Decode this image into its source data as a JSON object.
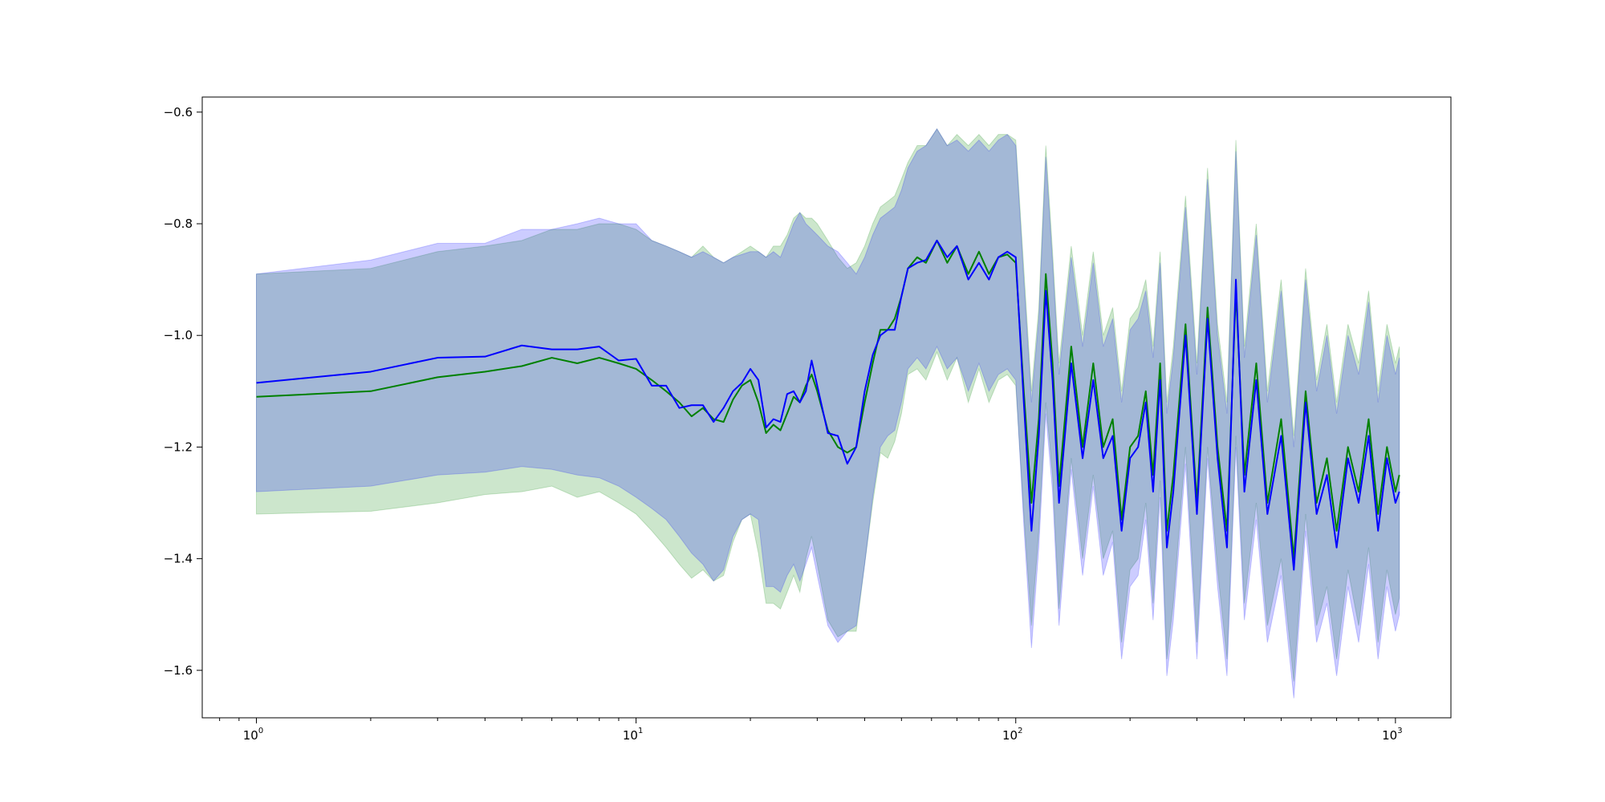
{
  "chart_data": {
    "type": "line",
    "title": "",
    "xlabel": "",
    "ylabel": "",
    "x_scale": "log",
    "xlim": [
      0.72,
      1400
    ],
    "ylim": [
      -1.685,
      -0.573
    ],
    "grid": false,
    "legend": "none",
    "x_ticks": [
      {
        "value": 1,
        "base": "10",
        "exp": "0"
      },
      {
        "value": 10,
        "base": "10",
        "exp": "1"
      },
      {
        "value": 100,
        "base": "10",
        "exp": "2"
      },
      {
        "value": 1000,
        "base": "10",
        "exp": "3"
      }
    ],
    "y_ticks": [
      {
        "value": -0.6,
        "label": "−0.6"
      },
      {
        "value": -0.8,
        "label": "−0.8"
      },
      {
        "value": -1.0,
        "label": "−1.0"
      },
      {
        "value": -1.2,
        "label": "−1.2"
      },
      {
        "value": -1.4,
        "label": "−1.4"
      },
      {
        "value": -1.6,
        "label": "−1.6"
      }
    ],
    "series": [
      {
        "color": "#008000",
        "band_color": "#008000",
        "band_opacity": 0.2,
        "x": [
          1,
          2,
          3,
          4,
          5,
          6,
          7,
          8,
          9,
          10,
          11,
          12,
          13,
          14,
          15,
          16,
          17,
          18,
          19,
          20,
          21,
          22,
          23,
          24,
          25,
          26,
          27,
          28,
          29,
          30,
          32,
          34,
          36,
          38,
          40,
          42,
          44,
          46,
          48,
          50,
          52,
          55,
          58,
          62,
          66,
          70,
          75,
          80,
          85,
          90,
          95,
          100,
          105,
          110,
          115,
          120,
          125,
          130,
          140,
          150,
          160,
          170,
          180,
          190,
          200,
          210,
          220,
          230,
          240,
          250,
          260,
          280,
          300,
          320,
          340,
          360,
          380,
          400,
          430,
          460,
          500,
          540,
          580,
          620,
          660,
          700,
          750,
          800,
          850,
          900,
          950,
          1000,
          1024
        ],
        "y": [
          -1.11,
          -1.1,
          -1.075,
          -1.065,
          -1.055,
          -1.04,
          -1.05,
          -1.04,
          -1.05,
          -1.06,
          -1.08,
          -1.1,
          -1.12,
          -1.145,
          -1.13,
          -1.15,
          -1.155,
          -1.115,
          -1.09,
          -1.08,
          -1.12,
          -1.175,
          -1.16,
          -1.17,
          -1.14,
          -1.11,
          -1.12,
          -1.09,
          -1.07,
          -1.1,
          -1.17,
          -1.2,
          -1.21,
          -1.2,
          -1.12,
          -1.05,
          -0.99,
          -0.99,
          -0.97,
          -0.93,
          -0.88,
          -0.86,
          -0.87,
          -0.83,
          -0.87,
          -0.84,
          -0.89,
          -0.85,
          -0.89,
          -0.86,
          -0.855,
          -0.87,
          -1.1,
          -1.3,
          -1.15,
          -0.89,
          -1.05,
          -1.27,
          -1.02,
          -1.2,
          -1.05,
          -1.2,
          -1.15,
          -1.33,
          -1.2,
          -1.18,
          -1.1,
          -1.25,
          -1.05,
          -1.35,
          -1.25,
          -0.98,
          -1.3,
          -0.95,
          -1.2,
          -1.35,
          -0.92,
          -1.25,
          -1.05,
          -1.3,
          -1.15,
          -1.4,
          -1.1,
          -1.3,
          -1.22,
          -1.35,
          -1.2,
          -1.28,
          -1.15,
          -1.32,
          -1.2,
          -1.28,
          -1.25
        ],
        "upper": [
          -0.89,
          -0.88,
          -0.85,
          -0.84,
          -0.83,
          -0.81,
          -0.81,
          -0.8,
          -0.8,
          -0.81,
          -0.83,
          -0.84,
          -0.85,
          -0.86,
          -0.84,
          -0.86,
          -0.87,
          -0.86,
          -0.85,
          -0.84,
          -0.85,
          -0.86,
          -0.84,
          -0.84,
          -0.82,
          -0.79,
          -0.78,
          -0.79,
          -0.79,
          -0.8,
          -0.83,
          -0.86,
          -0.88,
          -0.87,
          -0.84,
          -0.8,
          -0.77,
          -0.76,
          -0.75,
          -0.72,
          -0.69,
          -0.66,
          -0.66,
          -0.63,
          -0.66,
          -0.64,
          -0.66,
          -0.64,
          -0.66,
          -0.64,
          -0.64,
          -0.65,
          -0.88,
          -1.1,
          -0.95,
          -0.66,
          -0.85,
          -1.05,
          -0.84,
          -1.0,
          -0.85,
          -1.0,
          -0.95,
          -1.1,
          -0.97,
          -0.95,
          -0.9,
          -1.02,
          -0.85,
          -1.12,
          -1.02,
          -0.75,
          -1.05,
          -0.7,
          -0.98,
          -1.12,
          -0.65,
          -1.02,
          -0.8,
          -1.1,
          -0.9,
          -1.18,
          -0.88,
          -1.08,
          -0.98,
          -1.12,
          -0.98,
          -1.05,
          -0.92,
          -1.1,
          -0.98,
          -1.05,
          -1.02
        ],
        "lower": [
          -1.32,
          -1.315,
          -1.3,
          -1.285,
          -1.28,
          -1.27,
          -1.29,
          -1.28,
          -1.3,
          -1.32,
          -1.35,
          -1.38,
          -1.41,
          -1.435,
          -1.42,
          -1.44,
          -1.43,
          -1.37,
          -1.33,
          -1.32,
          -1.39,
          -1.48,
          -1.48,
          -1.49,
          -1.46,
          -1.43,
          -1.46,
          -1.4,
          -1.36,
          -1.41,
          -1.51,
          -1.54,
          -1.53,
          -1.53,
          -1.41,
          -1.3,
          -1.21,
          -1.22,
          -1.19,
          -1.14,
          -1.07,
          -1.06,
          -1.08,
          -1.03,
          -1.08,
          -1.04,
          -1.12,
          -1.06,
          -1.12,
          -1.08,
          -1.07,
          -1.09,
          -1.32,
          -1.52,
          -1.35,
          -1.12,
          -1.25,
          -1.49,
          -1.22,
          -1.4,
          -1.25,
          -1.4,
          -1.35,
          -1.55,
          -1.42,
          -1.4,
          -1.3,
          -1.48,
          -1.26,
          -1.58,
          -1.48,
          -1.2,
          -1.55,
          -1.2,
          -1.42,
          -1.58,
          -1.18,
          -1.48,
          -1.3,
          -1.52,
          -1.4,
          -1.62,
          -1.32,
          -1.52,
          -1.45,
          -1.58,
          -1.42,
          -1.52,
          -1.38,
          -1.55,
          -1.42,
          -1.5,
          -1.47
        ]
      },
      {
        "color": "#0000ff",
        "band_color": "#0000ff",
        "band_opacity": 0.2,
        "x": [
          1,
          2,
          3,
          4,
          5,
          6,
          7,
          8,
          9,
          10,
          11,
          12,
          13,
          14,
          15,
          16,
          17,
          18,
          19,
          20,
          21,
          22,
          23,
          24,
          25,
          26,
          27,
          28,
          29,
          30,
          32,
          34,
          36,
          38,
          40,
          42,
          44,
          46,
          48,
          50,
          52,
          55,
          58,
          62,
          66,
          70,
          75,
          80,
          85,
          90,
          95,
          100,
          105,
          110,
          115,
          120,
          125,
          130,
          140,
          150,
          160,
          170,
          180,
          190,
          200,
          210,
          220,
          230,
          240,
          250,
          260,
          280,
          300,
          320,
          340,
          360,
          380,
          400,
          430,
          460,
          500,
          540,
          580,
          620,
          660,
          700,
          750,
          800,
          850,
          900,
          950,
          1000,
          1024
        ],
        "y": [
          -1.085,
          -1.065,
          -1.04,
          -1.038,
          -1.018,
          -1.025,
          -1.025,
          -1.02,
          -1.045,
          -1.042,
          -1.09,
          -1.09,
          -1.13,
          -1.125,
          -1.125,
          -1.155,
          -1.13,
          -1.1,
          -1.085,
          -1.06,
          -1.08,
          -1.165,
          -1.15,
          -1.155,
          -1.105,
          -1.1,
          -1.12,
          -1.1,
          -1.045,
          -1.09,
          -1.175,
          -1.18,
          -1.23,
          -1.2,
          -1.1,
          -1.035,
          -1.0,
          -0.99,
          -0.99,
          -0.93,
          -0.88,
          -0.87,
          -0.865,
          -0.83,
          -0.86,
          -0.84,
          -0.9,
          -0.87,
          -0.9,
          -0.86,
          -0.85,
          -0.86,
          -1.12,
          -1.35,
          -1.18,
          -0.92,
          -1.08,
          -1.3,
          -1.05,
          -1.22,
          -1.08,
          -1.22,
          -1.18,
          -1.35,
          -1.22,
          -1.2,
          -1.12,
          -1.28,
          -1.08,
          -1.38,
          -1.28,
          -1.0,
          -1.32,
          -0.97,
          -1.22,
          -1.38,
          -0.9,
          -1.28,
          -1.08,
          -1.32,
          -1.18,
          -1.42,
          -1.12,
          -1.32,
          -1.25,
          -1.38,
          -1.22,
          -1.3,
          -1.18,
          -1.35,
          -1.22,
          -1.3,
          -1.28
        ],
        "upper": [
          -0.89,
          -0.865,
          -0.835,
          -0.835,
          -0.81,
          -0.81,
          -0.8,
          -0.79,
          -0.8,
          -0.8,
          -0.83,
          -0.84,
          -0.85,
          -0.86,
          -0.85,
          -0.86,
          -0.87,
          -0.86,
          -0.855,
          -0.85,
          -0.85,
          -0.86,
          -0.85,
          -0.86,
          -0.83,
          -0.8,
          -0.78,
          -0.8,
          -0.81,
          -0.82,
          -0.84,
          -0.85,
          -0.87,
          -0.89,
          -0.86,
          -0.82,
          -0.79,
          -0.78,
          -0.77,
          -0.74,
          -0.7,
          -0.67,
          -0.66,
          -0.63,
          -0.66,
          -0.65,
          -0.67,
          -0.65,
          -0.67,
          -0.65,
          -0.64,
          -0.66,
          -0.9,
          -1.12,
          -0.97,
          -0.68,
          -0.87,
          -1.07,
          -0.86,
          -1.02,
          -0.87,
          -1.02,
          -0.97,
          -1.12,
          -0.99,
          -0.97,
          -0.92,
          -1.04,
          -0.87,
          -1.14,
          -1.04,
          -0.77,
          -1.07,
          -0.72,
          -1.0,
          -1.14,
          -0.67,
          -1.04,
          -0.82,
          -1.12,
          -0.92,
          -1.2,
          -0.9,
          -1.1,
          -1.0,
          -1.14,
          -1.0,
          -1.07,
          -0.94,
          -1.12,
          -1.0,
          -1.07,
          -1.04
        ],
        "lower": [
          -1.28,
          -1.27,
          -1.25,
          -1.245,
          -1.235,
          -1.24,
          -1.25,
          -1.255,
          -1.27,
          -1.29,
          -1.31,
          -1.33,
          -1.36,
          -1.39,
          -1.41,
          -1.44,
          -1.42,
          -1.36,
          -1.33,
          -1.32,
          -1.33,
          -1.45,
          -1.45,
          -1.46,
          -1.43,
          -1.41,
          -1.44,
          -1.41,
          -1.38,
          -1.43,
          -1.52,
          -1.55,
          -1.53,
          -1.52,
          -1.41,
          -1.29,
          -1.2,
          -1.18,
          -1.17,
          -1.12,
          -1.06,
          -1.04,
          -1.06,
          -1.02,
          -1.06,
          -1.04,
          -1.1,
          -1.05,
          -1.1,
          -1.07,
          -1.06,
          -1.08,
          -1.34,
          -1.56,
          -1.38,
          -1.14,
          -1.28,
          -1.52,
          -1.24,
          -1.43,
          -1.27,
          -1.43,
          -1.37,
          -1.58,
          -1.45,
          -1.43,
          -1.33,
          -1.51,
          -1.29,
          -1.61,
          -1.51,
          -1.23,
          -1.58,
          -1.22,
          -1.45,
          -1.61,
          -1.2,
          -1.51,
          -1.33,
          -1.55,
          -1.43,
          -1.65,
          -1.35,
          -1.55,
          -1.48,
          -1.61,
          -1.45,
          -1.55,
          -1.41,
          -1.58,
          -1.45,
          -1.53,
          -1.5
        ]
      }
    ]
  }
}
